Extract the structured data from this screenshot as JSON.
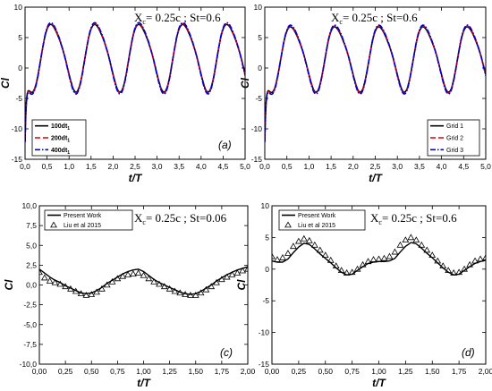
{
  "chart_data": [
    {
      "type": "line",
      "panel_label": "(a)",
      "annotation": "X_c= 0.25c ; St=0.6",
      "xlabel": "t/T",
      "ylabel": "Cl",
      "xlim": [
        0,
        5
      ],
      "ylim": [
        -15,
        10
      ],
      "xticks": [
        "0,0",
        "0,5",
        "1,0",
        "1,5",
        "2,0",
        "2,5",
        "3,0",
        "3,5",
        "4,0",
        "4,5",
        "5,0"
      ],
      "yticks": [
        "-15",
        "-10",
        "-5",
        "0",
        "5",
        "10"
      ],
      "legend_position": "bottom-left",
      "wave": {
        "mean": 2.0,
        "amplitude": 5.4,
        "period": 1.0,
        "peak_phase": 0.63,
        "harmonic2": 0.8,
        "initial_transient": -12
      },
      "series": [
        {
          "name": "100dt1",
          "color": "#000000",
          "dash": "solid"
        },
        {
          "name": "200dt1",
          "color": "#e00000",
          "dash": "dashed"
        },
        {
          "name": "400dt1",
          "color": "#0000e0",
          "dash": "dash-dot"
        }
      ]
    },
    {
      "type": "line",
      "panel_label": "(b)",
      "annotation": "X_c= 0.25c ; St=0.6",
      "xlabel": "t/T",
      "ylabel": "Cl",
      "xlim": [
        0,
        5
      ],
      "ylim": [
        -15,
        10
      ],
      "xticks": [
        "0,0",
        "0,5",
        "1,0",
        "1,5",
        "2,0",
        "2,5",
        "3,0",
        "3,5",
        "4,0",
        "4,5",
        "5,0"
      ],
      "yticks": [
        "-15",
        "-10",
        "-5",
        "0",
        "5",
        "10"
      ],
      "legend_position": "bottom-right",
      "wave": {
        "mean": 1.8,
        "amplitude": 5.2,
        "period": 1.0,
        "peak_phase": 0.63,
        "harmonic2": 0.8,
        "initial_transient": -12
      },
      "series": [
        {
          "name": "Grid 1",
          "color": "#000000",
          "dash": "solid"
        },
        {
          "name": "Grid 2",
          "color": "#e00000",
          "dash": "dashed"
        },
        {
          "name": "Grid 3",
          "color": "#0000e0",
          "dash": "dash-dot"
        }
      ]
    },
    {
      "type": "line",
      "panel_label": "(c)",
      "annotation": "X_c= 0.25c ; St=0.06",
      "xlabel": "t/T",
      "ylabel": "Cl",
      "xlim": [
        0,
        2
      ],
      "ylim": [
        -10,
        10
      ],
      "xticks": [
        "0,00",
        "0,25",
        "0,50",
        "0,75",
        "1,00",
        "1,25",
        "1,50",
        "1,75",
        "2,00"
      ],
      "yticks": [
        "-10,0",
        "-7,5",
        "-5,0",
        "-2,5",
        "0,0",
        "2,5",
        "5,0",
        "7,5",
        "10,0"
      ],
      "legend_position": "top-left",
      "series": [
        {
          "name": "Present Work",
          "color": "#000000",
          "marker": "none",
          "x": [
            0,
            0.05,
            0.1,
            0.15,
            0.2,
            0.25,
            0.3,
            0.35,
            0.4,
            0.45,
            0.5,
            0.55,
            0.6,
            0.65,
            0.7,
            0.75,
            0.8,
            0.85,
            0.9,
            0.95,
            1.0,
            1.05,
            1.1,
            1.15,
            1.2,
            1.25,
            1.3,
            1.35,
            1.4,
            1.45,
            1.5,
            1.55,
            1.6,
            1.65,
            1.7,
            1.75,
            1.8,
            1.85,
            1.9,
            1.95,
            2.0
          ],
          "y": [
            2.0,
            1.5,
            1.0,
            0.6,
            0.3,
            -0.1,
            -0.4,
            -0.7,
            -1.0,
            -1.1,
            -1.0,
            -0.7,
            -0.3,
            0.2,
            0.6,
            1.0,
            1.4,
            1.7,
            1.9,
            2.0,
            1.7,
            1.2,
            0.7,
            0.3,
            0.0,
            -0.3,
            -0.6,
            -0.9,
            -1.1,
            -1.2,
            -1.1,
            -0.8,
            -0.4,
            0.0,
            0.5,
            0.9,
            1.3,
            1.6,
            1.9,
            2.1,
            2.3
          ]
        },
        {
          "name": "Liu et al 2015",
          "color": "#000000",
          "marker": "triangle",
          "x": [
            0,
            0.05,
            0.1,
            0.15,
            0.2,
            0.25,
            0.3,
            0.35,
            0.4,
            0.45,
            0.5,
            0.55,
            0.6,
            0.65,
            0.7,
            0.75,
            0.8,
            0.85,
            0.9,
            0.95,
            1.0,
            1.05,
            1.1,
            1.15,
            1.2,
            1.25,
            1.3,
            1.35,
            1.4,
            1.45,
            1.5,
            1.55,
            1.6,
            1.65,
            1.7,
            1.75,
            1.8,
            1.85,
            1.9,
            1.95,
            2.0
          ],
          "y": [
            1.6,
            0.9,
            0.5,
            0.3,
            0.1,
            -0.2,
            -0.5,
            -0.8,
            -1.1,
            -1.3,
            -1.2,
            -0.9,
            -0.5,
            0.0,
            0.4,
            0.8,
            1.1,
            1.3,
            1.4,
            1.5,
            1.2,
            0.8,
            0.4,
            0.1,
            -0.2,
            -0.5,
            -0.8,
            -1.0,
            -1.2,
            -1.3,
            -1.3,
            -1.0,
            -0.6,
            -0.2,
            0.3,
            0.7,
            1.0,
            1.3,
            1.5,
            1.8,
            2.0
          ]
        }
      ]
    },
    {
      "type": "line",
      "panel_label": "(d)",
      "annotation": "X_c= 0.25c ; St=0.6",
      "xlabel": "t/T",
      "ylabel": "Cl",
      "xlim": [
        0,
        2
      ],
      "ylim": [
        -15,
        10
      ],
      "xticks": [
        "0,00",
        "0,25",
        "0,50",
        "0,75",
        "1,00",
        "1,25",
        "1,50",
        "1,75",
        "2,00"
      ],
      "yticks": [
        "-15",
        "-10",
        "-5",
        "0",
        "5",
        "10"
      ],
      "legend_position": "top-left",
      "series": [
        {
          "name": "Present Work",
          "color": "#000000",
          "marker": "none",
          "x": [
            0,
            0.05,
            0.1,
            0.15,
            0.2,
            0.25,
            0.3,
            0.35,
            0.4,
            0.45,
            0.5,
            0.55,
            0.6,
            0.65,
            0.7,
            0.75,
            0.8,
            0.85,
            0.9,
            0.95,
            1.0,
            1.05,
            1.1,
            1.15,
            1.2,
            1.25,
            1.3,
            1.35,
            1.4,
            1.45,
            1.5,
            1.55,
            1.6,
            1.65,
            1.7,
            1.75,
            1.8,
            1.85,
            1.9,
            1.95,
            2.0
          ],
          "y": [
            1.3,
            1.1,
            1.1,
            1.6,
            2.6,
            3.5,
            4.1,
            3.9,
            3.2,
            2.4,
            1.7,
            1.0,
            0.2,
            -0.5,
            -0.9,
            -0.8,
            -0.2,
            0.4,
            0.9,
            1.1,
            1.2,
            1.2,
            1.3,
            1.7,
            2.7,
            3.6,
            4.2,
            4.0,
            3.3,
            2.5,
            1.8,
            1.0,
            0.2,
            -0.5,
            -0.9,
            -0.8,
            -0.2,
            0.4,
            0.9,
            1.2,
            1.4
          ]
        },
        {
          "name": "Liu et al 2015",
          "color": "#000000",
          "marker": "triangle",
          "x": [
            0,
            0.05,
            0.1,
            0.15,
            0.2,
            0.25,
            0.3,
            0.35,
            0.4,
            0.45,
            0.5,
            0.55,
            0.6,
            0.65,
            0.7,
            0.75,
            0.8,
            0.85,
            0.9,
            0.95,
            1.0,
            1.05,
            1.1,
            1.15,
            1.2,
            1.25,
            1.3,
            1.35,
            1.4,
            1.45,
            1.5,
            1.55,
            1.6,
            1.65,
            1.7,
            1.75,
            1.8,
            1.85,
            1.9,
            1.95,
            2.0
          ],
          "y": [
            2.0,
            1.5,
            1.8,
            2.5,
            3.6,
            4.4,
            4.8,
            4.5,
            3.8,
            3.0,
            2.2,
            1.4,
            0.5,
            -0.2,
            -0.6,
            -0.5,
            0.0,
            0.7,
            1.2,
            1.5,
            1.6,
            1.7,
            2.0,
            2.7,
            3.8,
            4.6,
            5.0,
            4.6,
            3.8,
            3.0,
            2.2,
            1.3,
            0.5,
            -0.2,
            -0.6,
            -0.5,
            0.0,
            0.7,
            1.3,
            1.6,
            1.8
          ]
        }
      ]
    }
  ]
}
